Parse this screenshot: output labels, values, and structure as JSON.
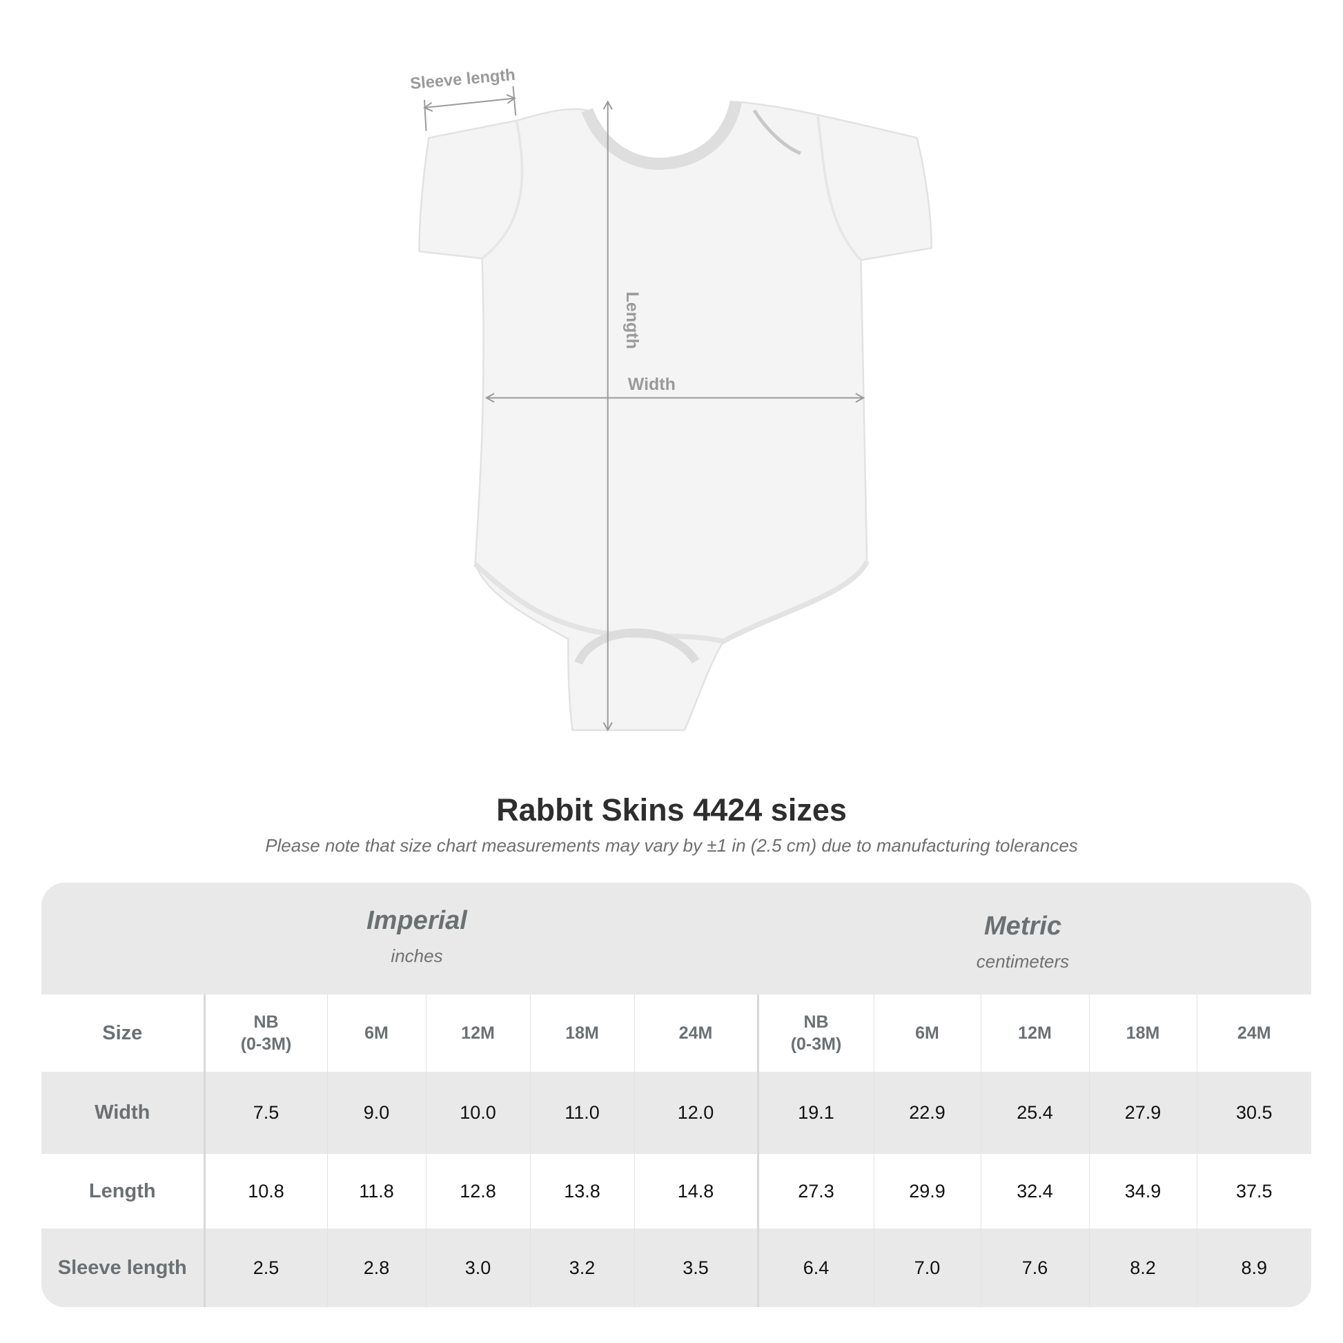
{
  "diagram": {
    "sleeve_label": "Sleeve length",
    "length_label": "Length",
    "width_label": "Width",
    "line_color": "#9a9a9a"
  },
  "title": "Rabbit Skins 4424 sizes",
  "subtitle": "Please note that size chart measurements may vary by ±1 in (2.5 cm) due to manufacturing tolerances",
  "table": {
    "imperial": {
      "name": "Imperial",
      "unit": "inches"
    },
    "metric": {
      "name": "Metric",
      "unit": "centimeters"
    },
    "size_label": "Size",
    "sizes": [
      "NB\n(0-3M)",
      "6M",
      "12M",
      "18M",
      "24M"
    ],
    "rows": [
      {
        "label": "Width",
        "imperial": [
          "7.5",
          "9.0",
          "10.0",
          "11.0",
          "12.0"
        ],
        "metric": [
          "19.1",
          "22.9",
          "25.4",
          "27.9",
          "30.5"
        ]
      },
      {
        "label": "Length",
        "imperial": [
          "10.8",
          "11.8",
          "12.8",
          "13.8",
          "14.8"
        ],
        "metric": [
          "27.3",
          "29.9",
          "32.4",
          "34.9",
          "37.5"
        ]
      },
      {
        "label": "Sleeve length",
        "imperial": [
          "2.5",
          "2.8",
          "3.0",
          "3.2",
          "3.5"
        ],
        "metric": [
          "6.4",
          "7.0",
          "7.6",
          "8.2",
          "8.9"
        ]
      }
    ]
  }
}
